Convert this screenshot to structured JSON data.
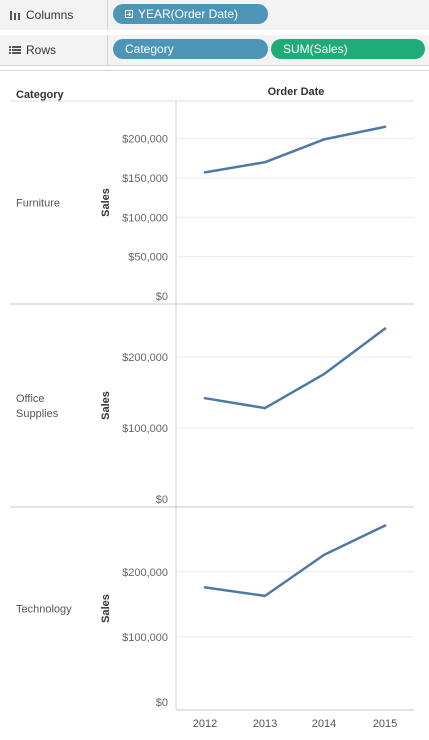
{
  "shelves": {
    "columns": {
      "label": "Columns",
      "pills": [
        {
          "label": "YEAR(Order Date)"
        }
      ]
    },
    "rows": {
      "label": "Rows",
      "pills": [
        {
          "label": "Category"
        },
        {
          "label": "SUM(Sales)"
        }
      ]
    }
  },
  "colors": {
    "line": "#4e79a7",
    "dimension_pill": "#4c95b6",
    "measure_pill": "#1fac78"
  },
  "chart_data": {
    "type": "line",
    "row_header": "Category",
    "column_header": "Order Date",
    "x": [
      "2012",
      "2013",
      "2014",
      "2015"
    ],
    "panes": [
      {
        "category_lines": [
          "Furniture"
        ],
        "ylabel": "Sales",
        "ylim": [
          0,
          230000
        ],
        "yticks": [
          0,
          50000,
          100000,
          150000,
          200000
        ],
        "ytick_labels": [
          "$0",
          "$50,000",
          "$100,000",
          "$150,000",
          "$200,000"
        ],
        "values": [
          157000,
          170000,
          199000,
          215000
        ]
      },
      {
        "category_lines": [
          "Office",
          "Supplies"
        ],
        "ylabel": "Sales",
        "ylim": [
          0,
          255000
        ],
        "yticks": [
          0,
          100000,
          200000
        ],
        "ytick_labels": [
          "$0",
          "$100,000",
          "$200,000"
        ],
        "values": [
          142000,
          128000,
          176000,
          240000
        ]
      },
      {
        "category_lines": [
          "Technology"
        ],
        "ylabel": "Sales",
        "ylim": [
          0,
          278000
        ],
        "yticks": [
          0,
          100000,
          200000
        ],
        "ytick_labels": [
          "$0",
          "$100,000",
          "$200,000"
        ],
        "values": [
          176000,
          163000,
          226000,
          271000
        ]
      }
    ],
    "grid": true,
    "legend": "none"
  }
}
